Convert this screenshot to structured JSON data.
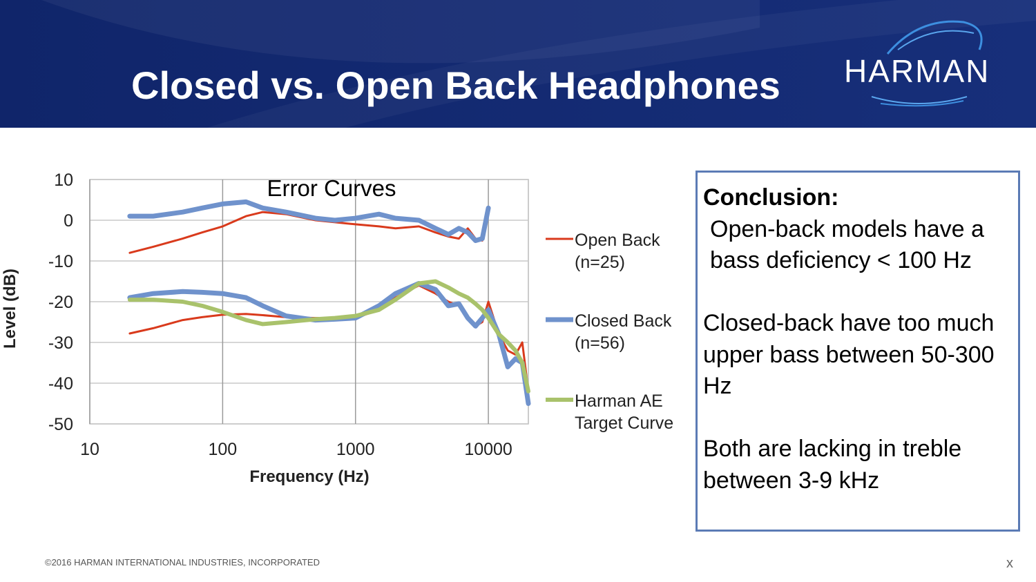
{
  "header": {
    "title": "Closed vs. Open Back Headphones",
    "logo": "HARMAN"
  },
  "chart_data": {
    "type": "line",
    "title": "Error Curves",
    "x_label": "Frequency (Hz)",
    "y_label": "Level (dB)",
    "x_scale": "log",
    "xlim": [
      10,
      20000
    ],
    "xticks": [
      10,
      100,
      1000,
      10000
    ],
    "ylim": [
      -50,
      10
    ],
    "yticks": [
      -50,
      -40,
      -30,
      -20,
      -10,
      0,
      10
    ],
    "grid": true,
    "x": [
      20,
      30,
      50,
      70,
      100,
      150,
      200,
      300,
      500,
      700,
      1000,
      1500,
      2000,
      3000,
      4000,
      5000,
      6000,
      7000,
      8000,
      9000,
      10000,
      12000,
      14000,
      16000,
      18000,
      20000
    ],
    "series": [
      {
        "name": "Open Back (n=25)",
        "color": "#d93a1c",
        "width": 3,
        "values": [
          -27.8,
          -26.5,
          -24.5,
          -23.8,
          -23.2,
          -23,
          -23.3,
          -23.8,
          -24,
          -24,
          -24,
          -22,
          -19,
          -16,
          -18,
          -20,
          -21,
          -24,
          -26,
          -25,
          -20,
          -28,
          -32,
          -33,
          -30,
          -42
        ],
        "error_values": [
          -8,
          -6.5,
          -4.5,
          -3,
          -1.5,
          1,
          2,
          1.5,
          0,
          -0.5,
          -1,
          -1.5,
          -2,
          -1.5,
          -3,
          -4,
          -4.5,
          -2,
          -4.5,
          -5,
          2,
          null,
          null,
          null,
          null,
          null
        ]
      },
      {
        "name": "Closed Back (n=56)",
        "color": "#6f92cc",
        "width": 7,
        "values": [
          -19,
          -18,
          -17.5,
          -17.7,
          -18,
          -19,
          -21,
          -23.5,
          -24.5,
          -24.3,
          -24,
          -21,
          -18,
          -15.5,
          -17,
          -21,
          -20.5,
          -24,
          -26,
          -24,
          -22,
          -28,
          -36,
          -34,
          -35,
          -45
        ],
        "error_values": [
          1,
          1,
          2,
          3,
          4,
          4.5,
          3,
          2,
          0.5,
          0,
          0.5,
          1.5,
          0.5,
          0,
          -2,
          -3.5,
          -2,
          -3,
          -5,
          -4.5,
          3,
          null,
          null,
          null,
          null,
          null
        ]
      },
      {
        "name": "Harman AE Target Curve",
        "color": "#a9c26b",
        "width": 6,
        "values": [
          -19.5,
          -19.5,
          -20,
          -21,
          -22.5,
          -24.5,
          -25.5,
          -25,
          -24.3,
          -24,
          -23.5,
          -22,
          -19.5,
          -15.5,
          -15,
          -16.5,
          -18,
          -19,
          -20.5,
          -22,
          -24,
          -28,
          -30,
          -32,
          -35,
          -42
        ]
      }
    ]
  },
  "conclusion": {
    "heading": "Conclusion:",
    "paragraphs": [
      "Open-back models have a bass deficiency < 100 Hz",
      "Closed-back have too much upper bass between 50-300 Hz",
      "Both are lacking in treble between 3-9 kHz"
    ]
  },
  "footer": {
    "copyright": "©2016 HARMAN INTERNATIONAL INDUSTRIES, INCORPORATED",
    "corner": "x"
  }
}
